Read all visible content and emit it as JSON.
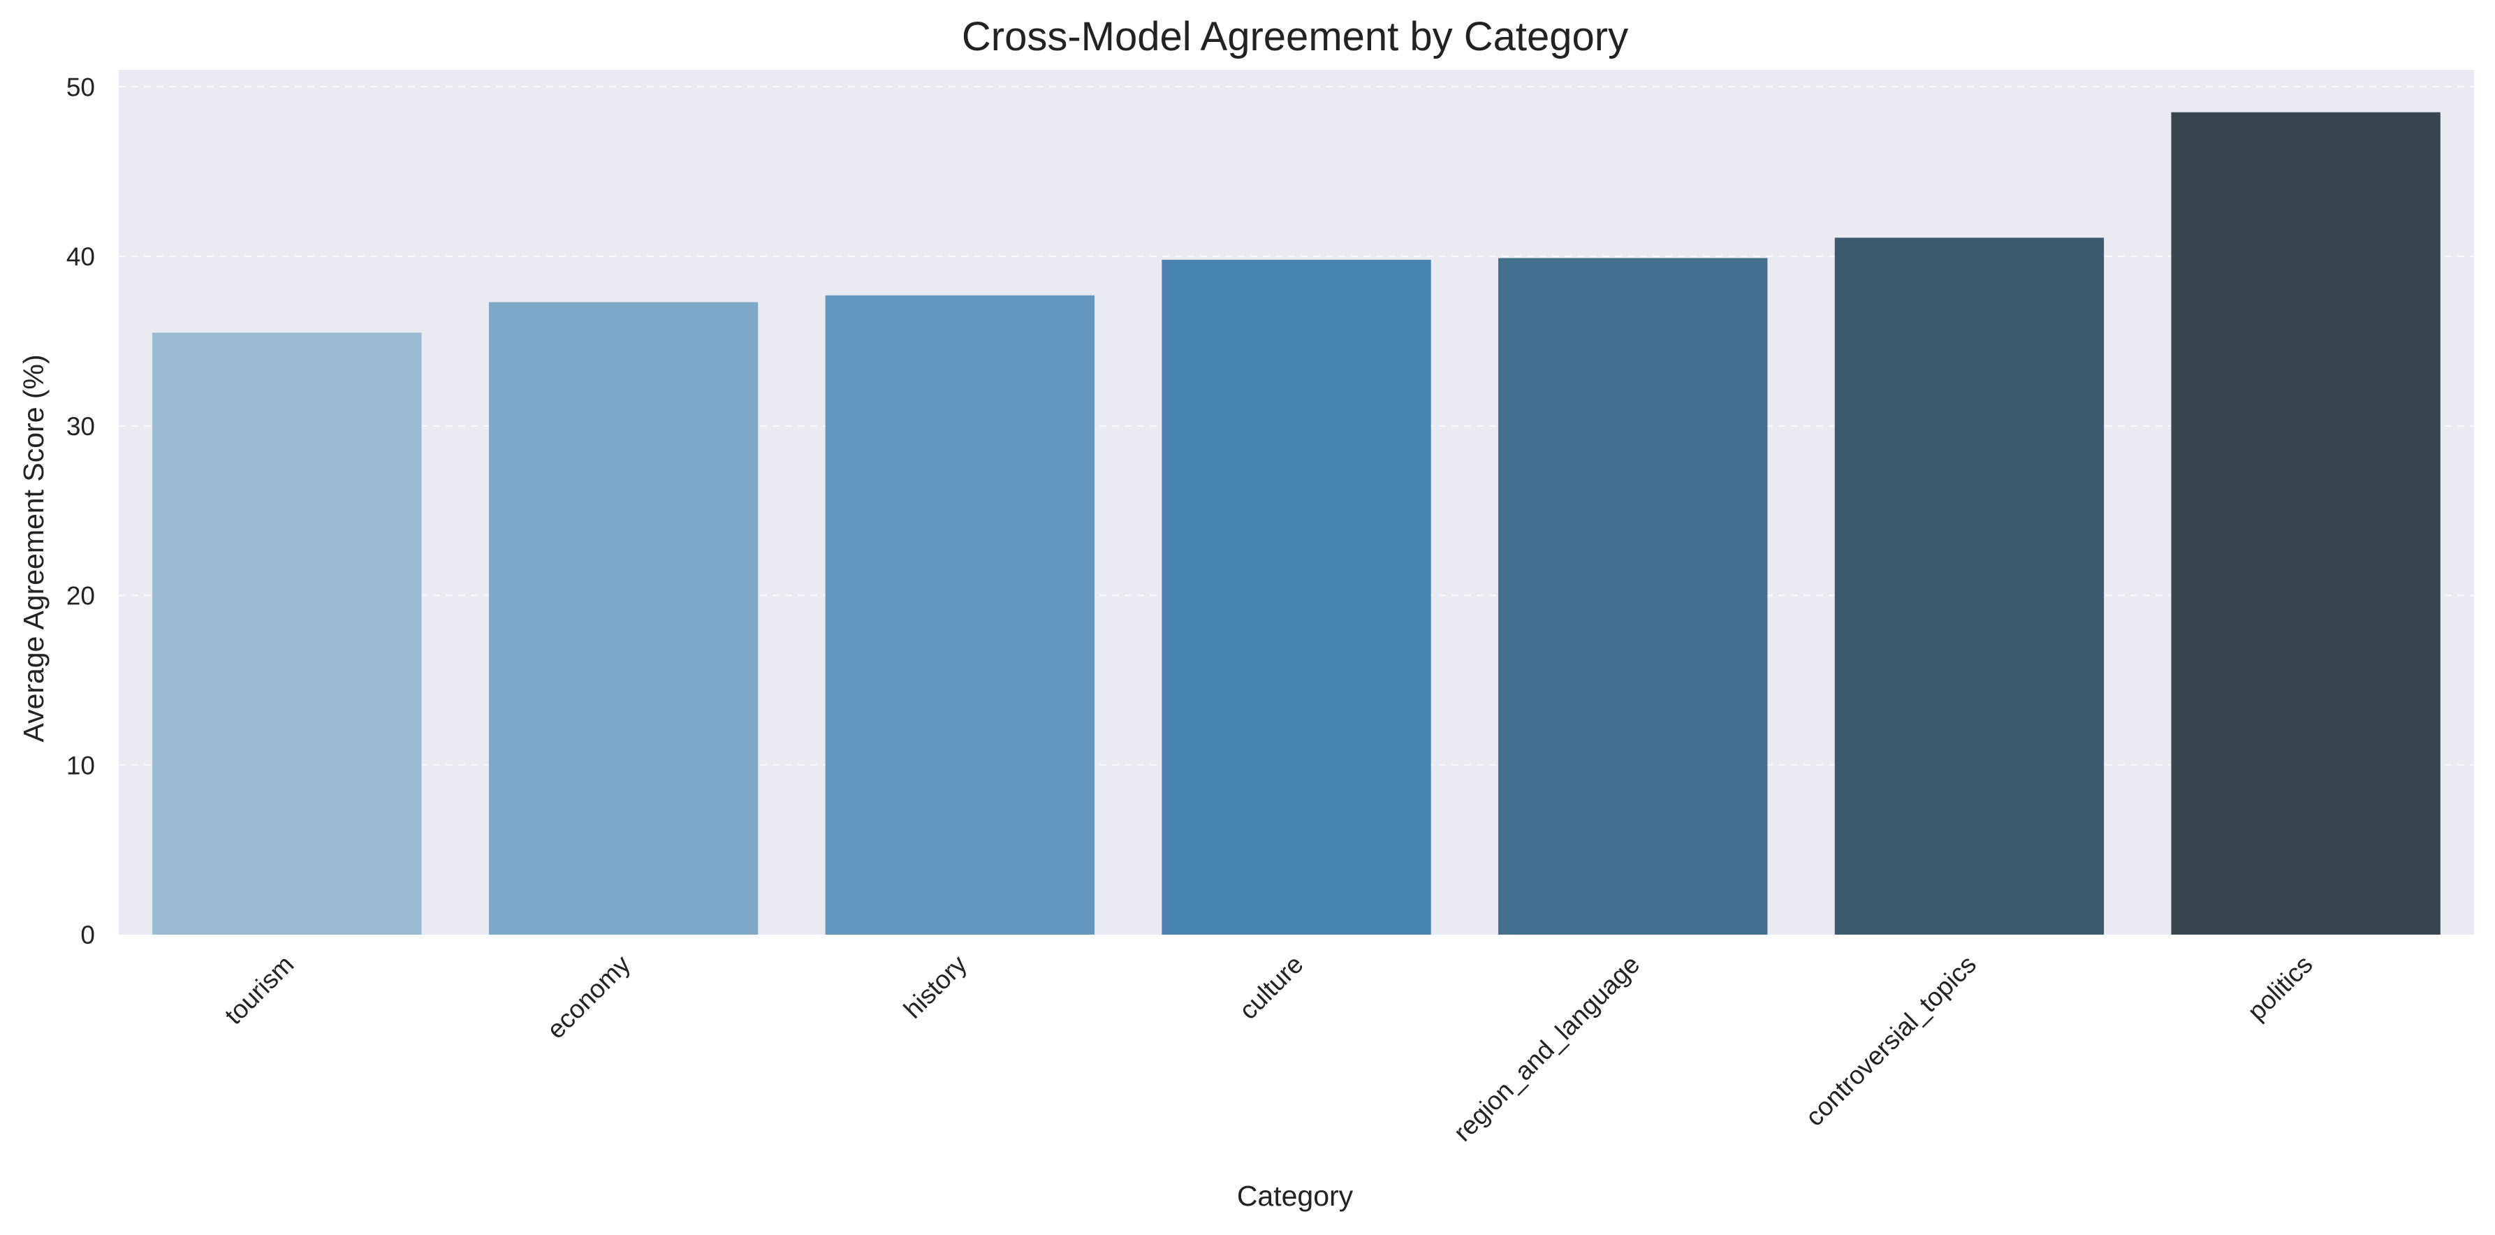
{
  "chart_data": {
    "type": "bar",
    "title": "Cross-Model Agreement by Category",
    "xlabel": "Category",
    "ylabel": "Average Agreement Score (%)",
    "categories": [
      "tourism",
      "economy",
      "history",
      "culture",
      "region_and_language",
      "controversial_topics",
      "politics"
    ],
    "values": [
      35.5,
      37.3,
      37.7,
      39.8,
      39.9,
      41.1,
      48.5
    ],
    "ylim": [
      0,
      51
    ],
    "yticks": [
      0,
      10,
      20,
      30,
      40,
      50
    ],
    "grid": true,
    "colors": {
      "plot_background": "#eaeaf2",
      "bars": [
        "#9abbd4",
        "#7ea8c8",
        "#6497bd",
        "#4883b0",
        "#43708f",
        "#3a5a70",
        "#37454f"
      ]
    }
  }
}
